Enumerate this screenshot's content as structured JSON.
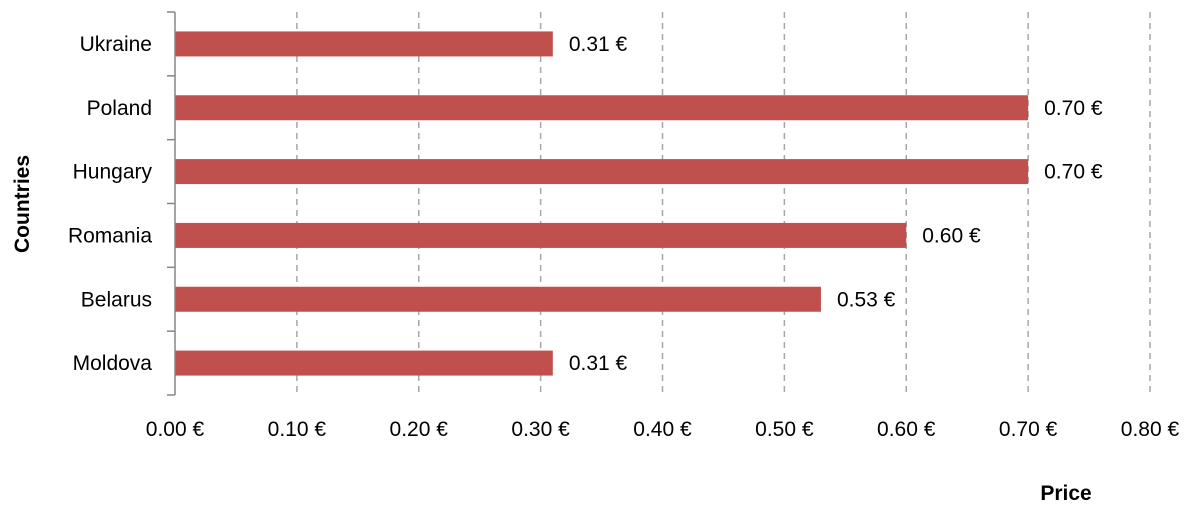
{
  "chart_data": {
    "type": "bar",
    "orientation": "horizontal",
    "categories": [
      "Ukraine",
      "Poland",
      "Hungary",
      "Romania",
      "Belarus",
      "Moldova"
    ],
    "series": [
      {
        "values": [
          0.31,
          0.7,
          0.7,
          0.6,
          0.53,
          0.31
        ]
      }
    ],
    "data_labels": [
      "0.31 €",
      "0.70 €",
      "0.70 €",
      "0.60 €",
      "0.53 €",
      "0.31 €"
    ],
    "xlabel": "Price",
    "ylabel": "Countries",
    "xlim": [
      0,
      0.8
    ],
    "xticks": [
      0,
      0.1,
      0.2,
      0.3,
      0.4,
      0.5,
      0.6,
      0.7,
      0.8
    ],
    "xtick_labels": [
      "0.00 €",
      "0.10 €",
      "0.20 €",
      "0.30 €",
      "0.40 €",
      "0.50 €",
      "0.60 €",
      "0.70 €",
      "0.80 €"
    ],
    "grid": "vertical dashed",
    "legend": "none",
    "bar_color": "#c0504d",
    "grid_color": "#a6a6a6",
    "axis_color": "#868686"
  }
}
